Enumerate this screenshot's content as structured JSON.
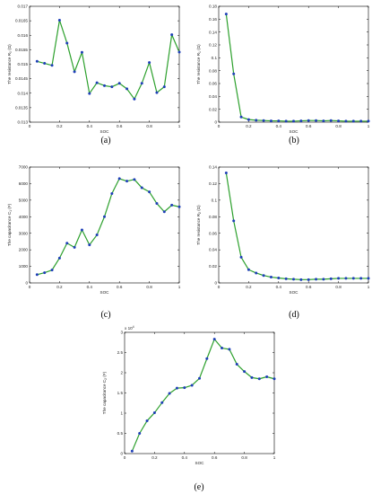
{
  "chart_data": [
    {
      "type": "line",
      "panel_label": "(a)",
      "xlabel": "SOC",
      "ylabel": "The resistance R",
      "ylabel_sub": "0",
      "ylabel_unit": " (Ω)",
      "xlim": [
        0,
        1
      ],
      "ylim": [
        0.013,
        0.017
      ],
      "xticks": [
        0,
        0.2,
        0.4,
        0.6,
        0.8,
        1
      ],
      "xtick_labels": [
        "0",
        "0.2",
        "0.4",
        "0.6",
        "0.8",
        "1"
      ],
      "yticks": [
        0.013,
        0.0135,
        0.014,
        0.0145,
        0.015,
        0.0155,
        0.016,
        0.0165,
        0.017
      ],
      "ytick_labels": [
        "0.013",
        "0.0135",
        "0.014",
        "0.0145",
        "0.015",
        "0.0155",
        "0.016",
        "0.0165",
        "0.017"
      ],
      "ymult": "",
      "x": [
        0.05,
        0.1,
        0.15,
        0.2,
        0.25,
        0.3,
        0.35,
        0.4,
        0.45,
        0.5,
        0.55,
        0.6,
        0.65,
        0.7,
        0.75,
        0.8,
        0.85,
        0.9,
        0.95,
        1.0
      ],
      "y": [
        0.0151,
        0.01503,
        0.01496,
        0.01652,
        0.01573,
        0.01474,
        0.01541,
        0.01399,
        0.01436,
        0.01426,
        0.01422,
        0.01434,
        0.01415,
        0.0138,
        0.01434,
        0.01506,
        0.01402,
        0.01422,
        0.01602,
        0.01542
      ]
    },
    {
      "type": "line",
      "panel_label": "(b)",
      "xlabel": "SOC",
      "ylabel": "The resistance R",
      "ylabel_sub": "1",
      "ylabel_unit": " (Ω)",
      "xlim": [
        0,
        1
      ],
      "ylim": [
        0,
        0.18
      ],
      "xticks": [
        0,
        0.2,
        0.4,
        0.6,
        0.8,
        1
      ],
      "xtick_labels": [
        "0",
        "0.2",
        "0.4",
        "0.6",
        "0.8",
        "1"
      ],
      "yticks": [
        0,
        0.02,
        0.04,
        0.06,
        0.08,
        0.1,
        0.12,
        0.14,
        0.16,
        0.18
      ],
      "ytick_labels": [
        "0",
        "0.02",
        "0.04",
        "0.06",
        "0.08",
        "0.1",
        "0.12",
        "0.14",
        "0.16",
        "0.18"
      ],
      "ymult": "",
      "x": [
        0.05,
        0.1,
        0.15,
        0.2,
        0.25,
        0.3,
        0.35,
        0.4,
        0.45,
        0.5,
        0.55,
        0.6,
        0.65,
        0.7,
        0.75,
        0.8,
        0.85,
        0.9,
        0.95,
        1.0
      ],
      "y": [
        0.168,
        0.075,
        0.008,
        0.004,
        0.003,
        0.0025,
        0.002,
        0.002,
        0.0015,
        0.0015,
        0.002,
        0.0025,
        0.0025,
        0.002,
        0.0025,
        0.002,
        0.0015,
        0.0015,
        0.0015,
        0.0015
      ]
    },
    {
      "type": "line",
      "panel_label": "(c)",
      "xlabel": "SOC",
      "ylabel": "The capacitance C",
      "ylabel_sub": "1",
      "ylabel_unit": " (F)",
      "xlim": [
        0,
        1
      ],
      "ylim": [
        0,
        7000
      ],
      "xticks": [
        0,
        0.2,
        0.4,
        0.6,
        0.8,
        1
      ],
      "xtick_labels": [
        "0",
        "0.2",
        "0.4",
        "0.6",
        "0.8",
        "1"
      ],
      "yticks": [
        0,
        1000,
        2000,
        3000,
        4000,
        5000,
        6000,
        7000
      ],
      "ytick_labels": [
        "0",
        "1000",
        "2000",
        "3000",
        "4000",
        "5000",
        "6000",
        "7000"
      ],
      "ymult": "",
      "x": [
        0.05,
        0.1,
        0.15,
        0.2,
        0.25,
        0.3,
        0.35,
        0.4,
        0.45,
        0.5,
        0.55,
        0.6,
        0.65,
        0.7,
        0.75,
        0.8,
        0.85,
        0.9,
        0.95,
        1.0
      ],
      "y": [
        500,
        620,
        780,
        1500,
        2400,
        2150,
        3200,
        2300,
        2900,
        4000,
        5400,
        6300,
        6150,
        6250,
        5750,
        5500,
        4800,
        4300,
        4700,
        4600
      ]
    },
    {
      "type": "line",
      "panel_label": "(d)",
      "xlabel": "SOC",
      "ylabel": "The resistance R",
      "ylabel_sub": "2",
      "ylabel_unit": " (Ω)",
      "xlim": [
        0,
        1
      ],
      "ylim": [
        0,
        0.14
      ],
      "xticks": [
        0,
        0.2,
        0.4,
        0.6,
        0.8,
        1
      ],
      "xtick_labels": [
        "0",
        "0.2",
        "0.4",
        "0.6",
        "0.8",
        "1"
      ],
      "yticks": [
        0,
        0.02,
        0.04,
        0.06,
        0.08,
        0.1,
        0.12,
        0.14
      ],
      "ytick_labels": [
        "0",
        "0.02",
        "0.04",
        "0.06",
        "0.08",
        "0.1",
        "0.12",
        "0.14"
      ],
      "ymult": "",
      "x": [
        0.05,
        0.1,
        0.15,
        0.2,
        0.25,
        0.3,
        0.35,
        0.4,
        0.45,
        0.5,
        0.55,
        0.6,
        0.65,
        0.7,
        0.75,
        0.8,
        0.85,
        0.9,
        0.95,
        1.0
      ],
      "y": [
        0.133,
        0.075,
        0.031,
        0.016,
        0.012,
        0.009,
        0.007,
        0.006,
        0.005,
        0.0045,
        0.004,
        0.004,
        0.0045,
        0.0045,
        0.005,
        0.0055,
        0.0055,
        0.0055,
        0.0055,
        0.0055
      ]
    },
    {
      "type": "line",
      "panel_label": "(e)",
      "xlabel": "SOC",
      "ylabel": "The capacitance C",
      "ylabel_sub": "2",
      "ylabel_unit": " (F)",
      "xlim": [
        0,
        1
      ],
      "ylim": [
        0,
        30000
      ],
      "xticks": [
        0,
        0.2,
        0.4,
        0.6,
        0.8,
        1
      ],
      "xtick_labels": [
        "0",
        "0.2",
        "0.4",
        "0.6",
        "0.8",
        "1"
      ],
      "yticks": [
        0,
        5000,
        10000,
        15000,
        20000,
        25000,
        30000
      ],
      "ytick_labels": [
        "0",
        "0.5",
        "1",
        "1.5",
        "2",
        "2.5",
        "3"
      ],
      "ymult": "x 10",
      "ymult_exp": "4",
      "x": [
        0.05,
        0.1,
        0.15,
        0.2,
        0.25,
        0.3,
        0.35,
        0.4,
        0.45,
        0.5,
        0.55,
        0.6,
        0.65,
        0.7,
        0.75,
        0.8,
        0.85,
        0.9,
        0.95,
        1.0
      ],
      "y": [
        600,
        5000,
        8100,
        10100,
        12600,
        14900,
        16200,
        16300,
        16900,
        18600,
        23500,
        28300,
        26100,
        25800,
        22100,
        20300,
        18800,
        18500,
        19000,
        18500
      ]
    }
  ],
  "style": {
    "line_color": "#2ca02c",
    "marker_color": "#1f3fb8",
    "axis_color": "#000000"
  }
}
